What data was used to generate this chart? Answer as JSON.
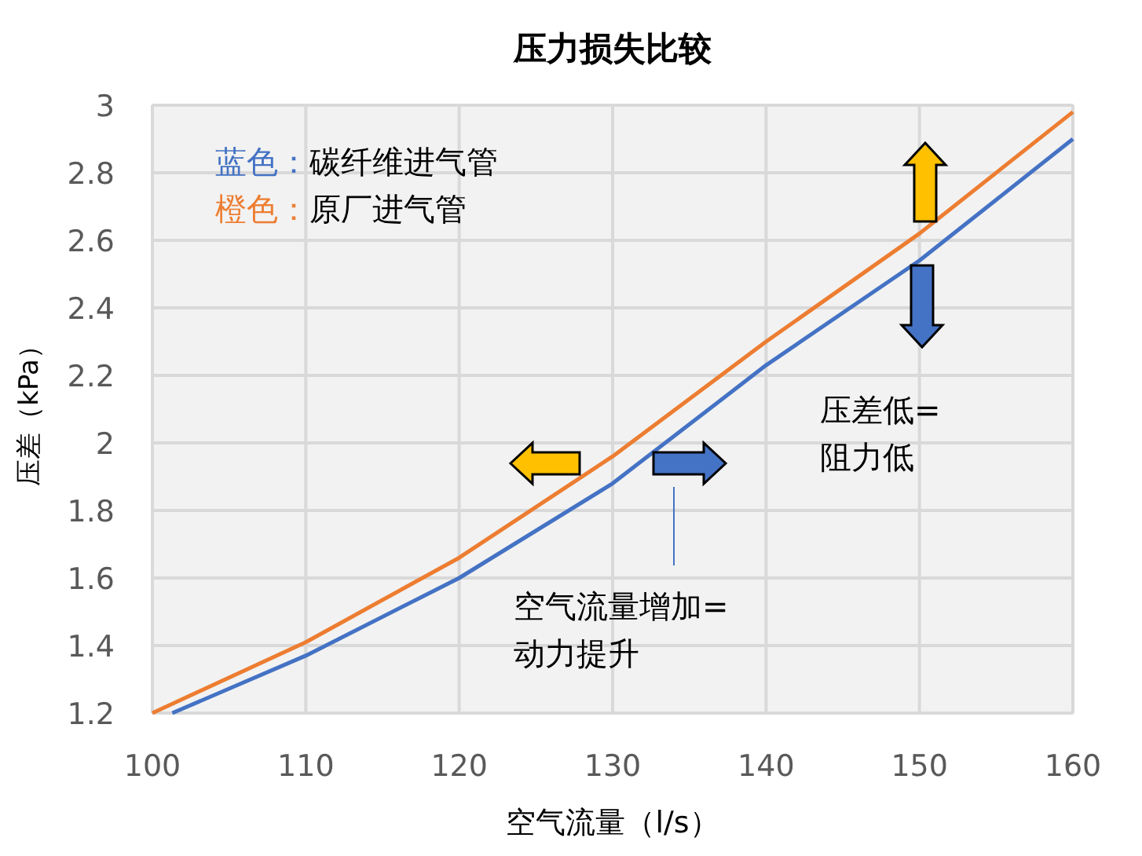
{
  "chart_data": {
    "type": "line",
    "title": "压力损失比较",
    "xlabel": "空气流量（l/s）",
    "ylabel": "压差（kPa）",
    "xlim": [
      100,
      160
    ],
    "xticks": [
      100,
      110,
      120,
      130,
      140,
      150,
      160
    ],
    "ylim": [
      1.2,
      3
    ],
    "yticks": [
      {
        "value": 1.2,
        "label": "1.2"
      },
      {
        "value": 1.4,
        "label": "1.4"
      },
      {
        "value": 1.6,
        "label": "1.6"
      },
      {
        "value": 1.8,
        "label": "1.8"
      },
      {
        "value": 2,
        "label": "2"
      },
      {
        "value": 2.2,
        "label": "2.2"
      },
      {
        "value": 2.4,
        "label": "2.4"
      },
      {
        "value": 2.6,
        "label": "2.6"
      },
      {
        "value": 2.8,
        "label": "2.8"
      },
      {
        "value": 3,
        "label": "3"
      }
    ],
    "grid": true,
    "legend": "top left",
    "marker": "none",
    "line_style": "solid",
    "series": [
      {
        "name": "蓝色：碳纤维进气管",
        "color": "#4472c4",
        "x": [
          101.3,
          110,
          120,
          130,
          140,
          150,
          160
        ],
        "values": [
          1.2,
          1.37,
          1.6,
          1.88,
          2.23,
          2.54,
          2.9
        ]
      },
      {
        "name": "橙色：原厂进气管",
        "color": "#ed7d31",
        "x": [
          100,
          110,
          120,
          130,
          140,
          150,
          160
        ],
        "values": [
          1.2,
          1.41,
          1.66,
          1.96,
          2.3,
          2.62,
          2.98
        ]
      }
    ],
    "annotations": [
      "空气流量增加=动力提升",
      "压差低=阻力低"
    ]
  }
}
